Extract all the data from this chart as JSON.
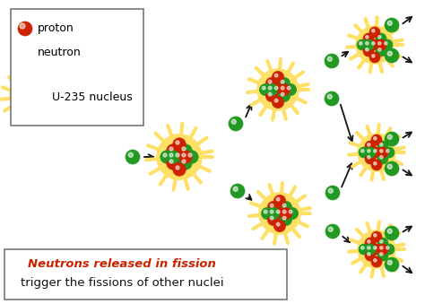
{
  "background_color": "#ffffff",
  "fig_width": 4.74,
  "fig_height": 3.39,
  "dpi": 100,
  "proton_color": "#cc2200",
  "neutron_color": "#229922",
  "explosion_color": "#ffe066",
  "arrow_color": "#111111",
  "legend_text_proton": "proton",
  "legend_text_neutron": "neutron",
  "legend_text_nucleus": "U-235 nucleus",
  "bottom_text_italic": "Neutrons released in fission",
  "bottom_text_normal": "trigger the fissions of other nuclei",
  "bottom_italic_color": "#cc2200",
  "bottom_normal_color": "#111111"
}
